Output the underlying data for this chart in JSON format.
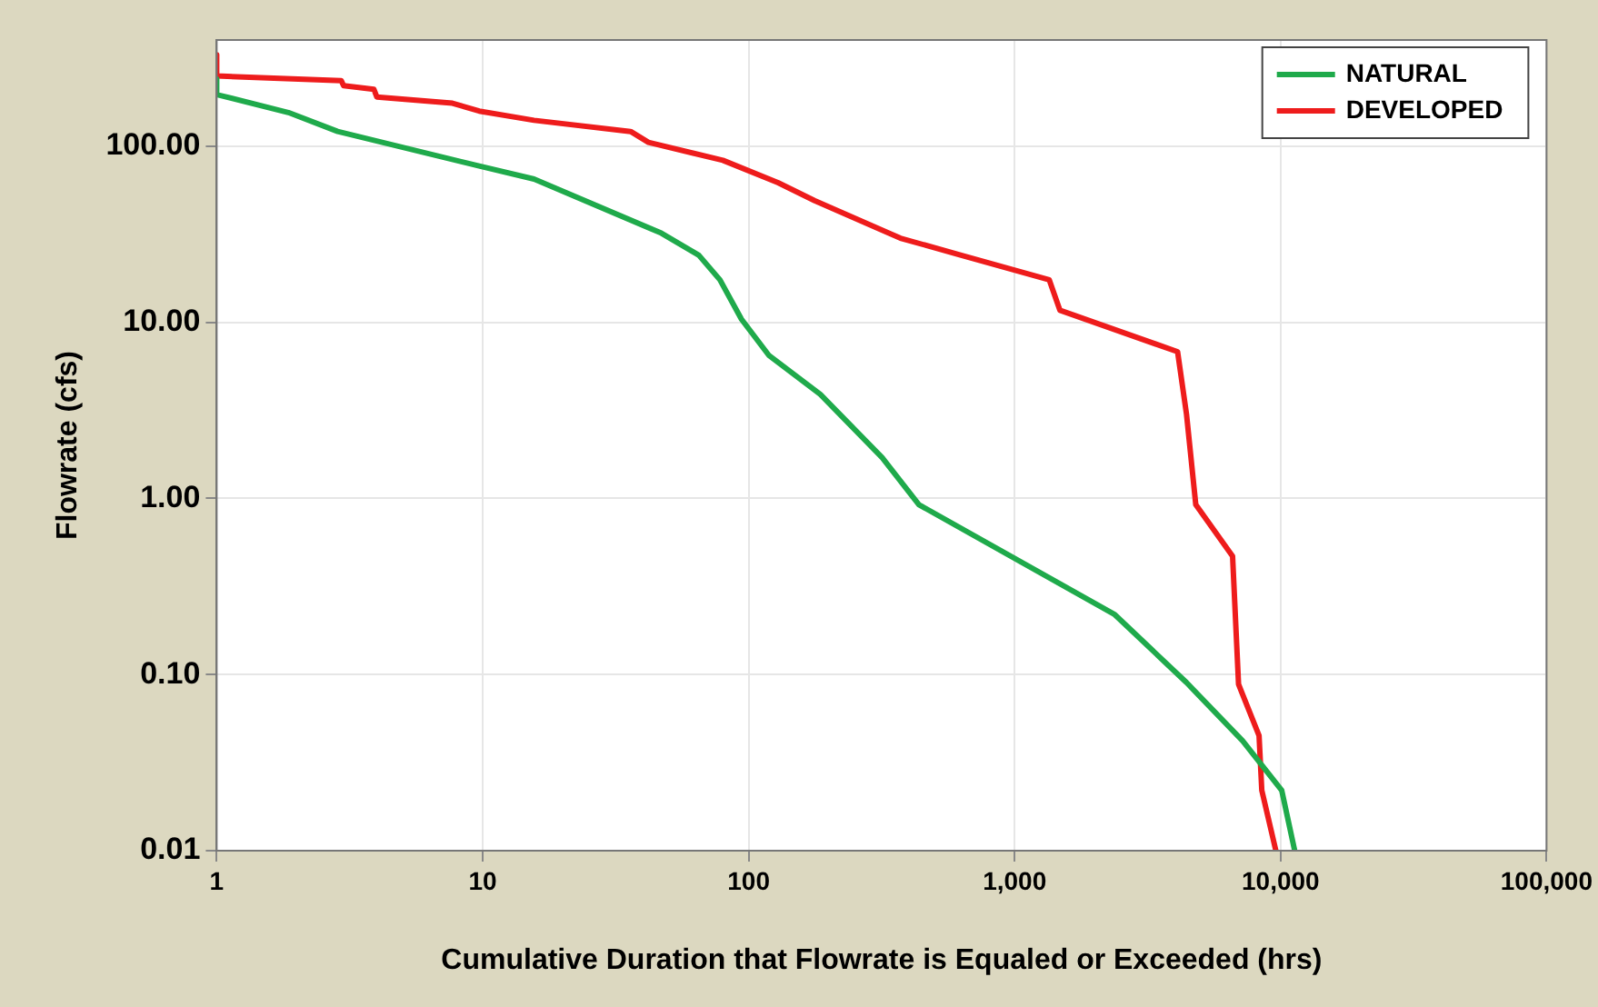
{
  "chart_data": {
    "type": "line",
    "xlabel": "Cumulative Duration that Flowrate is Equaled or Exceeded (hrs)",
    "ylabel": "Flowrate (cfs)",
    "log": "xy",
    "grid": true,
    "legend": "top right",
    "marker": "none",
    "line_style": "solid",
    "xlim": [
      1,
      100000
    ],
    "xticks": [
      1,
      10,
      100,
      {
        "value": 1000,
        "label": "1,000"
      },
      {
        "value": 10000,
        "label": "10,000"
      },
      {
        "value": 100000,
        "label": "100,000"
      }
    ],
    "ylim": [
      0.01,
      400
    ],
    "yticks": [
      {
        "value": 0.01,
        "label": "0.01"
      },
      {
        "value": 0.1,
        "label": "0.10"
      },
      {
        "value": 1,
        "label": "1.00"
      },
      {
        "value": 10,
        "label": "10.00"
      },
      {
        "value": 100,
        "label": "100.00"
      }
    ],
    "series": [
      {
        "name": "NATURAL",
        "color": "#1faa4b",
        "x": [
          1,
          1,
          1.86,
          2.85,
          9.7,
          15.6,
          47,
          65,
          78,
          94,
          119,
          186,
          318,
          437,
          2370,
          4430,
          7200,
          10100,
          11300
        ],
        "values": [
          240,
          196,
          155,
          121,
          77,
          65,
          32,
          24,
          17.4,
          10.4,
          6.5,
          3.9,
          1.7,
          0.92,
          0.22,
          0.09,
          0.042,
          0.022,
          0.01
        ]
      },
      {
        "name": "DEVELOPED",
        "color": "#ee1c1c",
        "x": [
          1,
          1,
          2.94,
          3,
          3.9,
          4,
          7.7,
          9.7,
          15.6,
          36,
          42,
          80,
          129,
          177,
          372,
          630,
          1350,
          1480,
          4100,
          4430,
          4800,
          6600,
          6950,
          8300,
          8500,
          9600
        ],
        "values": [
          330,
          250,
          235,
          220,
          210,
          190,
          175,
          158,
          140,
          121,
          105,
          83,
          62,
          49,
          30,
          24,
          17.4,
          11.7,
          6.8,
          3.0,
          0.92,
          0.47,
          0.088,
          0.045,
          0.022,
          0.01
        ]
      }
    ]
  }
}
